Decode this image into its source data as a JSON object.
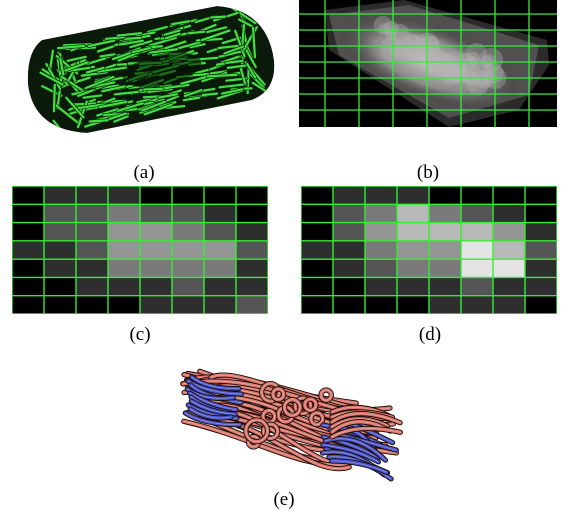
{
  "figure": {
    "panels": [
      {
        "id": "a",
        "caption": "(a)",
        "content": "green fiber tracts rendered as a cylinder"
      },
      {
        "id": "b",
        "caption": "(b)",
        "content": "grayscale volume rendering overlaid with a green grid"
      },
      {
        "id": "c",
        "caption": "(c)",
        "content": "grid of gray density cells"
      },
      {
        "id": "d",
        "caption": "(d)",
        "content": "grid of gray density cells"
      },
      {
        "id": "e",
        "caption": "(e)",
        "content": "red and blue streamtubes"
      }
    ],
    "grid_c": [
      [
        0,
        1,
        1,
        1,
        0,
        0,
        0,
        0
      ],
      [
        0,
        2,
        2,
        3,
        2,
        2,
        1,
        0
      ],
      [
        0,
        2,
        2,
        4,
        4,
        3,
        2,
        1
      ],
      [
        1,
        1,
        2,
        4,
        4,
        4,
        4,
        2
      ],
      [
        0,
        1,
        1,
        3,
        3,
        3,
        3,
        1
      ],
      [
        0,
        0,
        1,
        1,
        1,
        2,
        1,
        1
      ],
      [
        0,
        0,
        0,
        0,
        1,
        1,
        1,
        2
      ]
    ],
    "grid_d": [
      [
        0,
        1,
        1,
        1,
        0,
        0,
        0,
        0
      ],
      [
        0,
        2,
        3,
        5,
        3,
        2,
        1,
        0
      ],
      [
        0,
        2,
        4,
        5,
        5,
        5,
        4,
        1
      ],
      [
        1,
        1,
        3,
        4,
        4,
        6,
        5,
        2
      ],
      [
        0,
        1,
        2,
        3,
        3,
        6,
        6,
        1
      ],
      [
        0,
        0,
        1,
        1,
        1,
        2,
        1,
        1
      ],
      [
        0,
        0,
        0,
        0,
        1,
        1,
        1,
        0
      ]
    ],
    "colors": {
      "grid_line": "#33ee33",
      "fiber_green": "#44dd44",
      "tube_red": "#d9776a",
      "tube_blue": "#4a55c8",
      "gray_levels": [
        "#000000",
        "#2e2e2e",
        "#555555",
        "#7a7a7a",
        "#959595",
        "#b8b8b8",
        "#e4e4e4"
      ]
    }
  }
}
